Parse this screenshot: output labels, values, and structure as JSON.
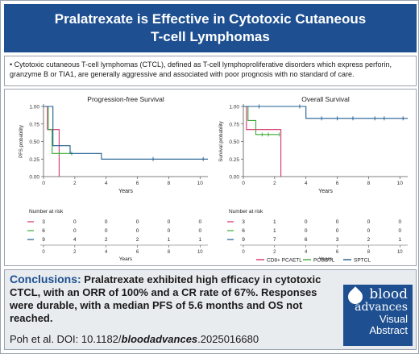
{
  "header": {
    "title": "Pralatrexate is Effective in Cytotoxic Cutaneous T-cell Lymphomas"
  },
  "intro": {
    "bullet": "• Cytotoxic cutaneous T-cell lymphomas (CTCL), defined as T-cell lymphoproliferative disorders which express perforin, granzyme B or TIA1, are generally aggressive and associated with poor prognosis with no standard of care."
  },
  "colors": {
    "cd8": "#d6336c",
    "pcgdtl": "#3aaa35",
    "sptcl": "#1d5c8f",
    "brand": "#1d4f91"
  },
  "chart_data": [
    {
      "type": "line",
      "title": "Progression-free Survival",
      "xlabel": "Years",
      "ylabel": "PFS probability",
      "xlim": [
        0,
        10.5
      ],
      "ylim": [
        0,
        1.0
      ],
      "xticks": [
        0,
        2,
        4,
        6,
        8,
        10
      ],
      "yticks": [
        "0.00",
        "0.25",
        "0.50",
        "0.75",
        "1.00"
      ],
      "series": [
        {
          "name": "CD8+ PCAETL",
          "color": "#d6336c",
          "x": [
            0,
            0.25,
            0.25,
            1.0,
            1.0
          ],
          "y": [
            1.0,
            1.0,
            0.67,
            0.67,
            0.0
          ],
          "censor_x": [],
          "censor_y": []
        },
        {
          "name": "PCGDTL",
          "color": "#3aaa35",
          "x": [
            0,
            0.3,
            0.3,
            0.55,
            0.55,
            1.8
          ],
          "y": [
            1.0,
            1.0,
            0.67,
            0.67,
            0.33,
            0.33
          ],
          "censor_x": [
            1.0,
            1.8
          ],
          "censor_y": [
            0.33,
            0.33
          ]
        },
        {
          "name": "SPTCL",
          "color": "#1d5c8f",
          "x": [
            0,
            0.6,
            0.6,
            1.7,
            1.7,
            3.7,
            3.7,
            10.5
          ],
          "y": [
            1.0,
            1.0,
            0.44,
            0.44,
            0.33,
            0.33,
            0.25,
            0.25
          ],
          "censor_x": [
            7.0,
            10.2
          ],
          "censor_y": [
            0.25,
            0.25
          ]
        }
      ],
      "risk_label": "Number at risk",
      "risk_table": [
        [
          "3",
          "0",
          "0",
          "0",
          "0",
          "0"
        ],
        [
          "6",
          "0",
          "0",
          "0",
          "0",
          "0"
        ],
        [
          "9",
          "4",
          "2",
          "2",
          "1",
          "1"
        ]
      ]
    },
    {
      "type": "line",
      "title": "Overall Survival",
      "xlabel": "Years",
      "ylabel": "Survival probability",
      "xlim": [
        0,
        10.5
      ],
      "ylim": [
        0,
        1.0
      ],
      "xticks": [
        0,
        2,
        4,
        6,
        8,
        10
      ],
      "yticks": [
        "0.00",
        "0.25",
        "0.50",
        "0.75",
        "1.00"
      ],
      "series": [
        {
          "name": "CD8+ PCAETL",
          "color": "#d6336c",
          "x": [
            0,
            0.2,
            0.2,
            2.4,
            2.4
          ],
          "y": [
            1.0,
            1.0,
            0.67,
            0.67,
            0.0
          ],
          "censor_x": [],
          "censor_y": []
        },
        {
          "name": "PCGDTL",
          "color": "#3aaa35",
          "x": [
            0,
            0.3,
            0.3,
            0.8,
            0.8,
            2.3
          ],
          "y": [
            1.0,
            1.0,
            0.8,
            0.8,
            0.6,
            0.6
          ],
          "censor_x": [
            1.2,
            1.6,
            2.3
          ],
          "censor_y": [
            0.6,
            0.6,
            0.6
          ]
        },
        {
          "name": "SPTCL",
          "color": "#1d5c8f",
          "x": [
            0,
            4.0,
            4.0,
            10.5
          ],
          "y": [
            1.0,
            1.0,
            0.83,
            0.83
          ],
          "censor_x": [
            1.0,
            3.6,
            5.0,
            6.0,
            7.0,
            8.4,
            9.0,
            10.2
          ],
          "censor_y": [
            1.0,
            1.0,
            0.83,
            0.83,
            0.83,
            0.83,
            0.83,
            0.83
          ]
        }
      ],
      "risk_label": "Number at risk",
      "risk_table": [
        [
          "3",
          "1",
          "0",
          "0",
          "0",
          "0"
        ],
        [
          "6",
          "1",
          "0",
          "0",
          "0",
          "0"
        ],
        [
          "9",
          "7",
          "6",
          "3",
          "2",
          "1"
        ]
      ]
    }
  ],
  "legend": [
    "CD8+ PCAETL",
    "PCGDTL",
    "SPTCL"
  ],
  "conclusion": {
    "label": "Conclusions:",
    "text": " Pralatrexate exhibited high efficacy in cytotoxic CTCL, with an ORR of 100% and a CR rate of 67%. Responses were durable, with a median PFS of 5.6 months and OS not reached.",
    "citation_prefix": "Poh et al. DOI: 10.1182/",
    "citation_journal": "bloodadvances",
    "citation_suffix": ".2025016680"
  },
  "logo": {
    "line1": "blood",
    "line2": "advances",
    "line3": "Visual",
    "line4": "Abstract"
  }
}
